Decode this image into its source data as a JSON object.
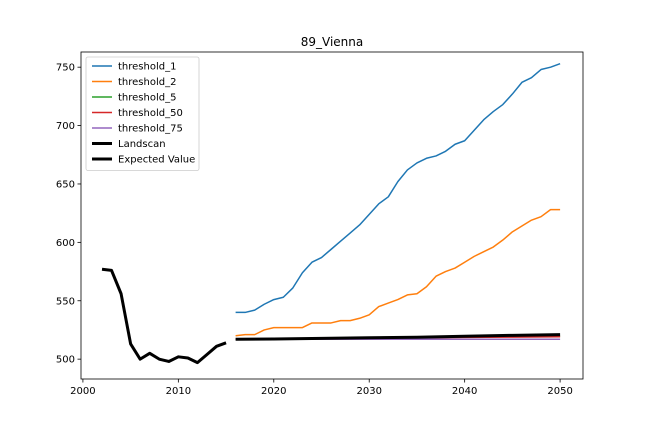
{
  "chart_data": {
    "type": "line",
    "title": "89_Vienna",
    "xlabel": "",
    "ylabel": "",
    "xlim": [
      1999.8,
      2052.4
    ],
    "ylim": [
      483,
      763
    ],
    "xticks": [
      2000,
      2010,
      2020,
      2030,
      2040,
      2050
    ],
    "yticks": [
      500,
      550,
      600,
      650,
      700,
      750
    ],
    "grid": false,
    "legend_position": "top-left",
    "series": [
      {
        "name": "threshold_1",
        "color": "#1f77b4",
        "width": 1.5,
        "x": [
          2016,
          2017,
          2018,
          2019,
          2020,
          2021,
          2022,
          2023,
          2024,
          2025,
          2026,
          2027,
          2028,
          2029,
          2030,
          2031,
          2032,
          2033,
          2034,
          2035,
          2036,
          2037,
          2038,
          2039,
          2040,
          2041,
          2042,
          2043,
          2044,
          2045,
          2046,
          2047,
          2048,
          2049,
          2050
        ],
        "y": [
          540,
          540,
          542,
          547,
          551,
          553,
          561,
          574,
          583,
          587,
          594,
          601,
          608,
          615,
          624,
          633,
          639,
          652,
          662,
          668,
          672,
          674,
          678,
          684,
          687,
          696,
          705,
          712,
          718,
          727,
          737,
          741,
          748,
          750,
          753
        ]
      },
      {
        "name": "threshold_2",
        "color": "#ff7f0e",
        "width": 1.5,
        "x": [
          2016,
          2017,
          2018,
          2019,
          2020,
          2021,
          2022,
          2023,
          2024,
          2025,
          2026,
          2027,
          2028,
          2029,
          2030,
          2031,
          2032,
          2033,
          2034,
          2035,
          2036,
          2037,
          2038,
          2039,
          2040,
          2041,
          2042,
          2043,
          2044,
          2045,
          2046,
          2047,
          2048,
          2049,
          2050
        ],
        "y": [
          520,
          521,
          521,
          525,
          527,
          527,
          527,
          527,
          531,
          531,
          531,
          533,
          533,
          535,
          538,
          545,
          548,
          551,
          555,
          556,
          562,
          571,
          575,
          578,
          583,
          588,
          592,
          596,
          602,
          609,
          614,
          619,
          622,
          628,
          628
        ]
      },
      {
        "name": "threshold_5",
        "color": "#2ca02c",
        "width": 1.5,
        "x": [
          2016,
          2020,
          2025,
          2030,
          2035,
          2040,
          2045,
          2050
        ],
        "y": [
          517,
          517.3,
          517.7,
          518.1,
          518.5,
          518.8,
          519.2,
          519.5
        ]
      },
      {
        "name": "threshold_50",
        "color": "#d62728",
        "width": 1.5,
        "x": [
          2016,
          2020,
          2025,
          2030,
          2035,
          2040,
          2045,
          2050
        ],
        "y": [
          517,
          517.3,
          517.6,
          518,
          518.3,
          518.6,
          518.9,
          519.2
        ]
      },
      {
        "name": "threshold_75",
        "color": "#9467bd",
        "width": 1.5,
        "x": [
          2016,
          2020,
          2025,
          2030,
          2035,
          2040,
          2045,
          2050
        ],
        "y": [
          517,
          517,
          517,
          517,
          517,
          517,
          517,
          517
        ]
      },
      {
        "name": "Landscan",
        "color": "#000000",
        "width": 3,
        "x": [
          2002,
          2003,
          2004,
          2005,
          2006,
          2007,
          2008,
          2009,
          2010,
          2011,
          2012,
          2013,
          2014,
          2015
        ],
        "y": [
          577,
          576,
          556,
          513,
          500,
          505,
          500,
          498,
          502,
          501,
          497,
          504,
          511,
          514
        ]
      },
      {
        "name": "Expected Value",
        "color": "#000000",
        "width": 3,
        "x": [
          2016,
          2020,
          2025,
          2030,
          2035,
          2040,
          2045,
          2050
        ],
        "y": [
          517,
          517.3,
          517.8,
          518.3,
          518.8,
          519.6,
          520.4,
          521
        ]
      }
    ]
  }
}
